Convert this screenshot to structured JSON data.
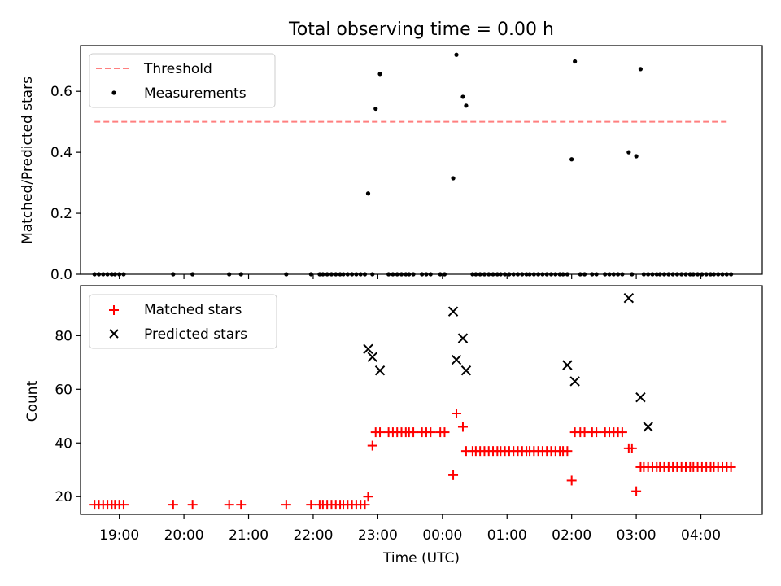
{
  "chart_data": [
    {
      "type": "scatter",
      "title": "Total observing time = 0.00 h",
      "xlabel": "",
      "ylabel": "Matched/Predicted stars",
      "xlim": [
        "18:24",
        "04:57"
      ],
      "ylim": [
        0,
        0.75
      ],
      "xticks": [
        "19:00",
        "20:00",
        "21:00",
        "22:00",
        "23:00",
        "00:00",
        "01:00",
        "02:00",
        "03:00",
        "04:00"
      ],
      "yticks": [
        "0.0",
        "0.2",
        "0.4",
        "0.6"
      ],
      "grid": false,
      "legend_position": "upper left",
      "series": [
        {
          "name": "Threshold",
          "kind": "dashed-line",
          "color": "#ff7f7f",
          "x": [
            "18:37",
            "04:26"
          ],
          "y": [
            0.5,
            0.5
          ]
        },
        {
          "name": "Measurements",
          "kind": "dot",
          "color": "#000000",
          "x": [
            "18:37",
            "18:41",
            "18:45",
            "18:49",
            "18:53",
            "18:56",
            "19:00",
            "19:04",
            "19:50",
            "20:08",
            "20:42",
            "20:53",
            "21:35",
            "21:58",
            "22:06",
            "22:09",
            "22:13",
            "22:17",
            "22:21",
            "22:25",
            "22:28",
            "22:32",
            "22:36",
            "22:40",
            "22:44",
            "22:48",
            "22:51",
            "22:55",
            "22:58",
            "23:02",
            "23:10",
            "23:14",
            "23:18",
            "23:22",
            "23:26",
            "23:29",
            "23:33",
            "23:41",
            "23:45",
            "23:49",
            "23:58",
            "24:02",
            "24:10",
            "24:13",
            "24:19",
            "24:22",
            "24:28",
            "24:31",
            "24:35",
            "24:39",
            "24:43",
            "24:47",
            "24:51",
            "24:54",
            "24:58",
            "25:02",
            "25:06",
            "25:10",
            "25:14",
            "25:18",
            "25:21",
            "25:25",
            "25:29",
            "25:33",
            "25:37",
            "25:41",
            "25:45",
            "25:49",
            "25:52",
            "25:56",
            "26:00",
            "26:03",
            "26:08",
            "26:12",
            "26:19",
            "26:23",
            "26:31",
            "26:35",
            "26:39",
            "26:43",
            "26:47",
            "26:53",
            "26:56",
            "27:00",
            "27:04",
            "27:07",
            "27:11",
            "27:15",
            "27:19",
            "27:22",
            "27:26",
            "27:30",
            "27:34",
            "27:38",
            "27:42",
            "27:46",
            "27:50",
            "27:53",
            "27:57",
            "28:01",
            "28:05",
            "28:09",
            "28:12",
            "28:16",
            "28:20",
            "28:24",
            "28:28"
          ],
          "y": [
            0,
            0,
            0,
            0,
            0,
            0,
            0,
            0,
            0,
            0,
            0,
            0,
            0,
            0,
            0,
            0,
            0,
            0,
            0,
            0,
            0,
            0,
            0,
            0,
            0,
            0,
            0.265,
            0,
            0.543,
            0.657,
            0,
            0,
            0,
            0,
            0,
            0,
            0,
            0,
            0,
            0,
            0,
            0,
            0.315,
            0.72,
            0.582,
            0.553,
            0,
            0,
            0,
            0,
            0,
            0,
            0,
            0,
            0,
            0,
            0,
            0,
            0,
            0,
            0,
            0,
            0,
            0,
            0,
            0,
            0,
            0,
            0,
            0,
            0.377,
            0.698,
            0,
            0,
            0,
            0,
            0,
            0,
            0,
            0,
            0,
            0.4,
            0,
            0.387,
            0.673,
            0,
            0,
            0,
            0,
            0,
            0,
            0,
            0,
            0,
            0,
            0,
            0,
            0,
            0,
            0,
            0,
            0,
            0,
            0,
            0,
            0,
            0
          ]
        }
      ]
    },
    {
      "type": "scatter",
      "title": "",
      "xlabel": "Time (UTC)",
      "ylabel": "Count",
      "xlim": [
        "18:24",
        "04:57"
      ],
      "ylim": [
        13.4,
        98.6
      ],
      "xticks": [
        "19:00",
        "20:00",
        "21:00",
        "22:00",
        "23:00",
        "00:00",
        "01:00",
        "02:00",
        "03:00",
        "04:00"
      ],
      "yticks": [
        "20",
        "40",
        "60",
        "80"
      ],
      "grid": false,
      "legend_position": "upper left",
      "series": [
        {
          "name": "Matched stars",
          "kind": "plus",
          "color": "#ff0000",
          "x": [
            "18:37",
            "18:41",
            "18:45",
            "18:49",
            "18:53",
            "18:56",
            "19:00",
            "19:04",
            "19:50",
            "20:08",
            "20:42",
            "20:53",
            "21:35",
            "21:58",
            "22:06",
            "22:09",
            "22:13",
            "22:17",
            "22:21",
            "22:25",
            "22:28",
            "22:32",
            "22:36",
            "22:40",
            "22:44",
            "22:48",
            "22:51",
            "22:55",
            "22:58",
            "23:02",
            "23:10",
            "23:14",
            "23:18",
            "23:22",
            "23:26",
            "23:29",
            "23:33",
            "23:41",
            "23:45",
            "23:49",
            "23:58",
            "24:02",
            "24:10",
            "24:13",
            "24:19",
            "24:22",
            "24:28",
            "24:31",
            "24:35",
            "24:39",
            "24:43",
            "24:47",
            "24:51",
            "24:54",
            "24:58",
            "25:02",
            "25:06",
            "25:10",
            "25:14",
            "25:18",
            "25:21",
            "25:25",
            "25:29",
            "25:33",
            "25:37",
            "25:41",
            "25:45",
            "25:49",
            "25:52",
            "25:56",
            "26:00",
            "26:03",
            "26:08",
            "26:12",
            "26:19",
            "26:23",
            "26:31",
            "26:35",
            "26:39",
            "26:43",
            "26:47",
            "26:53",
            "26:56",
            "27:00",
            "27:04",
            "27:07",
            "27:11",
            "27:15",
            "27:19",
            "27:22",
            "27:26",
            "27:30",
            "27:34",
            "27:38",
            "27:42",
            "27:46",
            "27:50",
            "27:53",
            "27:57",
            "28:01",
            "28:05",
            "28:09",
            "28:12",
            "28:16",
            "28:20",
            "28:24",
            "28:28"
          ],
          "y": [
            17,
            17,
            17,
            17,
            17,
            17,
            17,
            17,
            17,
            17,
            17,
            17,
            17,
            17,
            17,
            17,
            17,
            17,
            17,
            17,
            17,
            17,
            17,
            17,
            17,
            17,
            20,
            39,
            44,
            44,
            44,
            44,
            44,
            44,
            44,
            44,
            44,
            44,
            44,
            44,
            44,
            44,
            28,
            51,
            46,
            37,
            37,
            37,
            37,
            37,
            37,
            37,
            37,
            37,
            37,
            37,
            37,
            37,
            37,
            37,
            37,
            37,
            37,
            37,
            37,
            37,
            37,
            37,
            37,
            37,
            26,
            44,
            44,
            44,
            44,
            44,
            44,
            44,
            44,
            44,
            44,
            38,
            38,
            22,
            31,
            31,
            31,
            31,
            31,
            31,
            31,
            31,
            31,
            31,
            31,
            31,
            31,
            31,
            31,
            31,
            31,
            31,
            31,
            31,
            31,
            31,
            31
          ]
        },
        {
          "name": "Predicted stars",
          "kind": "x",
          "color": "#000000",
          "x": [
            "22:51",
            "22:55",
            "23:02",
            "24:10",
            "24:13",
            "24:19",
            "24:22",
            "25:56",
            "26:03",
            "26:53",
            "27:04",
            "27:11"
          ],
          "y": [
            75,
            72,
            67,
            89,
            71,
            79,
            67,
            69,
            63,
            94,
            57,
            46
          ]
        }
      ]
    }
  ]
}
